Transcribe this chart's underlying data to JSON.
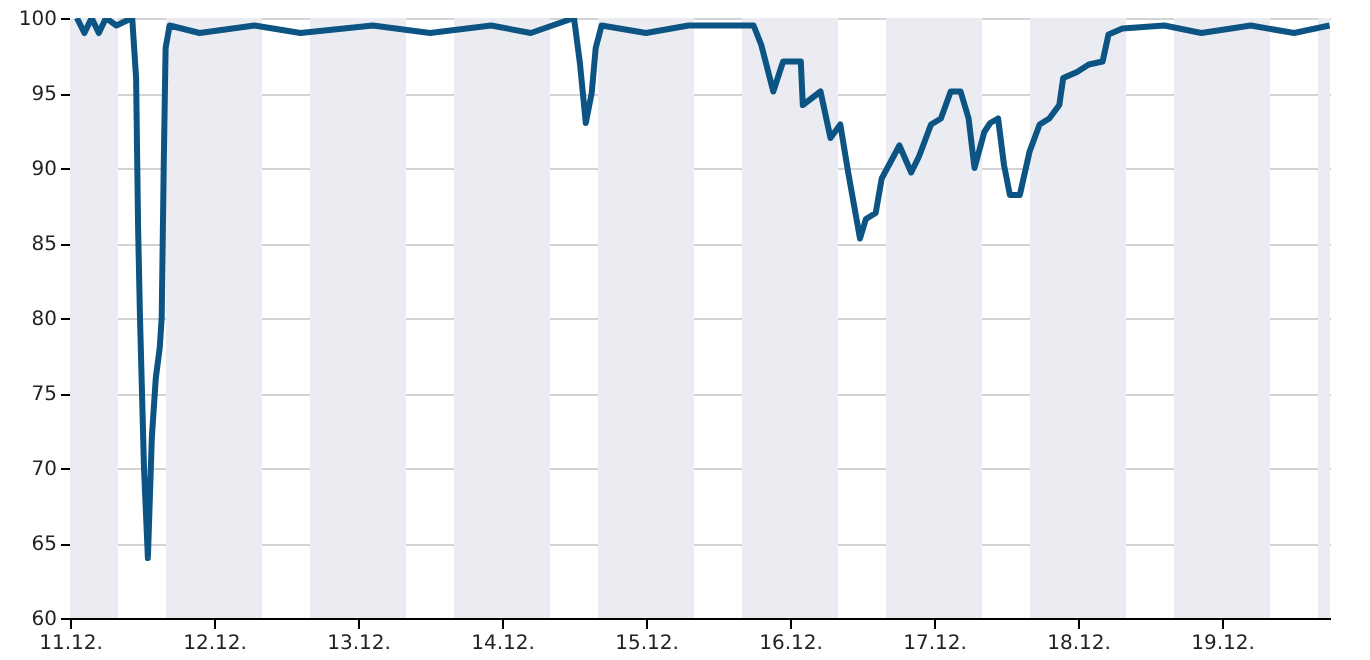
{
  "chart_data": {
    "type": "line",
    "x": [
      "--12-11T01:09",
      "--12-11T02:24",
      "--12-11T03:36",
      "--12-11T04:48",
      "--12-11T06:00",
      "--12-11T07:44",
      "--12-11T10:22",
      "--12-11T11:01",
      "--12-11T11:21",
      "--12-11T11:40",
      "--12-11T12:20",
      "--12-11T12:59",
      "--12-11T13:38",
      "--12-11T14:18",
      "--12-11T14:57",
      "--12-11T15:17",
      "--12-11T15:37",
      "--12-11T15:56",
      "--12-11T16:36",
      "--12-11T21:36",
      "--12-12T06:45",
      "--12-12T14:24",
      "--12-13T02:28",
      "--12-13T12:00",
      "--12-13T22:12",
      "--12-14T04:48",
      "--12-14T12:00",
      "--12-14T12:59",
      "--12-14T13:58",
      "--12-14T14:57",
      "--12-14T15:37",
      "--12-14T16:36",
      "--12-15T00:00",
      "--12-15T07:05",
      "--12-15T17:56",
      "--12-15T19:13",
      "--12-15T21:13",
      "--12-15T22:51",
      "--12-16T01:48",
      "--12-16T02:08",
      "--12-16T05:05",
      "--12-16T06:45",
      "--12-16T08:23",
      "--12-16T09:42",
      "--12-16T11:40",
      "--12-16T12:39",
      "--12-16T14:17",
      "--12-16T15:17",
      "--12-16T18:14",
      "--12-16T20:12",
      "--12-16T21:32",
      "--12-16T23:30",
      "--12-17T01:09",
      "--12-17T02:47",
      "--12-17T04:26",
      "--12-17T05:46",
      "--12-17T06:45",
      "--12-17T08:23",
      "--12-17T09:22",
      "--12-17T10:41",
      "--12-17T11:40",
      "--12-17T12:39",
      "--12-17T14:18",
      "--12-17T15:56",
      "--12-17T17:36",
      "--12-17T19:13",
      "--12-17T20:53",
      "--12-17T21:32",
      "--12-17T23:50",
      "--12-18T01:48",
      "--12-18T04:06",
      "--12-18T05:05",
      "--12-18T07:24",
      "--12-18T14:24",
      "--12-18T20:33",
      "--12-19T04:48",
      "--12-19T12:00",
      "--12-19T17:56"
    ],
    "series": [
      {
        "color": "#0b5484",
        "values": [
          100,
          99,
          100,
          99,
          100,
          99.5,
          100,
          96,
          86,
          80,
          70,
          64,
          72,
          76,
          78,
          80,
          90,
          98,
          99.5,
          99,
          99.5,
          99,
          99.5,
          99,
          99.5,
          99,
          100,
          97,
          93,
          95,
          98,
          99.5,
          99,
          99.5,
          99.5,
          98.2,
          95.1,
          97.1,
          97.1,
          94.2,
          95.1,
          92,
          92.9,
          89.7,
          85.3,
          86.6,
          87,
          89.3,
          91.5,
          89.7,
          90.8,
          92.9,
          93.3,
          95.1,
          95.1,
          93.3,
          90,
          92.4,
          93,
          93.3,
          90.2,
          88.2,
          88.2,
          91.1,
          92.9,
          93.3,
          94.2,
          96,
          96.4,
          96.9,
          97.1,
          98.9,
          99.3,
          99.5,
          99,
          99.5,
          99,
          99.5
        ]
      }
    ],
    "xlim": [
      "--12-11",
      "--12-19T18:00"
    ],
    "xticks": [
      {
        "value": "--12-11",
        "label": "11.12."
      },
      {
        "value": "--12-12",
        "label": "12.12."
      },
      {
        "value": "--12-13",
        "label": "13.12."
      },
      {
        "value": "--12-14",
        "label": "14.12."
      },
      {
        "value": "--12-15",
        "label": "15.12."
      },
      {
        "value": "--12-16",
        "label": "16.12."
      },
      {
        "value": "--12-17",
        "label": "17.12."
      },
      {
        "value": "--12-18",
        "label": "18.12."
      },
      {
        "value": "--12-19",
        "label": "19.12."
      }
    ],
    "ylim": [
      60,
      100
    ],
    "yticks": [
      60,
      65,
      70,
      75,
      80,
      85,
      90,
      95,
      100
    ],
    "grid": true,
    "bands": [
      {
        "axis": "x",
        "from": "--12-11",
        "to": "--12-11T08:00",
        "color": "#ebecf1"
      },
      {
        "axis": "x",
        "from": "--12-11T16:00",
        "to": "--12-12T08:00",
        "color": "#ebecf1"
      },
      {
        "axis": "x",
        "from": "--12-12T16:00",
        "to": "--12-13T08:00",
        "color": "#ebecf1"
      },
      {
        "axis": "x",
        "from": "--12-13T16:00",
        "to": "--12-14T08:00",
        "color": "#ebecf1"
      },
      {
        "axis": "x",
        "from": "--12-14T16:00",
        "to": "--12-15T08:00",
        "color": "#ebecf1"
      },
      {
        "axis": "x",
        "from": "--12-15T16:00",
        "to": "--12-16T08:00",
        "color": "#ebecf1"
      },
      {
        "axis": "x",
        "from": "--12-16T16:00",
        "to": "--12-17T08:00",
        "color": "#ebecf1"
      },
      {
        "axis": "x",
        "from": "--12-17T16:00",
        "to": "--12-18T08:00",
        "color": "#ebecf1"
      },
      {
        "axis": "x",
        "from": "--12-18T16:00",
        "to": "--12-19T08:00",
        "color": "#ebecf1"
      },
      {
        "axis": "x",
        "from": "--12-19T16:00",
        "to": "--12-19T18:00",
        "color": "#ebecf1"
      }
    ]
  }
}
